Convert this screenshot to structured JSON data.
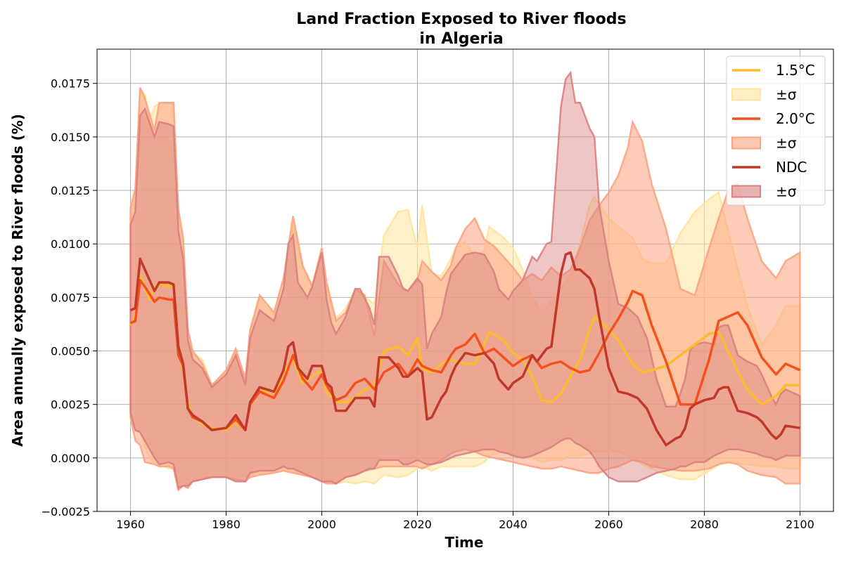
{
  "chart_data": {
    "type": "line",
    "title": "Land Fraction Exposed to River floods",
    "subtitle": "in Algeria",
    "xlabel": "Time",
    "ylabel": "Area annually exposed to River floods (%)",
    "xlim": [
      1953,
      2107
    ],
    "ylim": [
      -0.0025,
      0.0191
    ],
    "xticks": [
      1960,
      1980,
      2000,
      2020,
      2040,
      2060,
      2080,
      2100
    ],
    "yticks": [
      -0.0025,
      0.0,
      0.0025,
      0.005,
      0.0075,
      0.01,
      0.0125,
      0.015,
      0.0175
    ],
    "ytick_labels": [
      "−0.0025",
      "0.0000",
      "0.0025",
      "0.0050",
      "0.0075",
      "0.0100",
      "0.0125",
      "0.0150",
      "0.0175"
    ],
    "grid": true,
    "legend_position": "top-right",
    "colors": {
      "c15": "#FDBB2F",
      "c20": "#F4511E",
      "cndc": "#C0392B",
      "band15": "#FFE49E",
      "band20": "#FCA37F",
      "bandndc": "#D98080",
      "overlap": "#EB9C76"
    },
    "legend": [
      "1.5°C",
      "±σ",
      "2.0°C",
      "±σ",
      "NDC",
      "±σ"
    ],
    "series": [
      {
        "name": "1.5°C",
        "x": [
          1960,
          1961,
          1962,
          1963,
          1964,
          1965,
          1966,
          1968,
          1969,
          1970,
          1971,
          1972,
          1973,
          1975,
          1977,
          1980,
          1982,
          1984,
          1985,
          1987,
          1990,
          1992,
          1994,
          1996,
          1998,
          2000,
          2001,
          2003,
          2005,
          2007,
          2009,
          2011,
          2013,
          2016,
          2018,
          2020,
          2021,
          2023,
          2025,
          2027,
          2028,
          2030,
          2032,
          2034,
          2035,
          2038,
          2040,
          2042,
          2044,
          2046,
          2048,
          2050,
          2052,
          2054,
          2056,
          2057,
          2060,
          2062,
          2065,
          2067,
          2069,
          2072,
          2075,
          2078,
          2081,
          2083,
          2086,
          2089,
          2092,
          2095,
          2097,
          2100
        ],
        "mean": [
          0.0062,
          0.0066,
          0.0085,
          0.008,
          0.0074,
          0.008,
          0.0081,
          0.008,
          0.0081,
          0.0049,
          0.0041,
          0.0025,
          0.0019,
          0.0016,
          0.0014,
          0.0013,
          0.0017,
          0.0013,
          0.0025,
          0.0033,
          0.0028,
          0.004,
          0.0046,
          0.0035,
          0.0038,
          0.0041,
          0.0031,
          0.0026,
          0.0026,
          0.0028,
          0.0032,
          0.0034,
          0.005,
          0.0052,
          0.0048,
          0.0056,
          0.0042,
          0.004,
          0.0044,
          0.0046,
          0.0045,
          0.0044,
          0.0044,
          0.0053,
          0.0059,
          0.0055,
          0.0049,
          0.0046,
          0.0038,
          0.0027,
          0.0026,
          0.003,
          0.0038,
          0.0046,
          0.006,
          0.0066,
          0.006,
          0.0055,
          0.0044,
          0.004,
          0.0041,
          0.0043,
          0.0048,
          0.0053,
          0.0058,
          0.0059,
          0.0045,
          0.0032,
          0.0025,
          0.0029,
          0.0034,
          0.0034
        ],
        "upper": [
          0.0115,
          0.0122,
          0.0172,
          0.017,
          0.0157,
          0.0164,
          0.0166,
          0.0166,
          0.0165,
          0.0116,
          0.0102,
          0.006,
          0.0049,
          0.0046,
          0.0034,
          0.004,
          0.005,
          0.0036,
          0.0058,
          0.0074,
          0.0067,
          0.0079,
          0.0108,
          0.0089,
          0.0081,
          0.0098,
          0.0078,
          0.0065,
          0.007,
          0.0078,
          0.0075,
          0.0072,
          0.0104,
          0.0115,
          0.0116,
          0.0098,
          0.0118,
          0.0086,
          0.0085,
          0.0093,
          0.0098,
          0.0101,
          0.0094,
          0.0097,
          0.0108,
          0.0103,
          0.0098,
          0.0088,
          0.0075,
          0.0068,
          0.0073,
          0.0079,
          0.0085,
          0.01,
          0.0118,
          0.0122,
          0.0112,
          0.0108,
          0.0103,
          0.0093,
          0.0091,
          0.0091,
          0.0105,
          0.0115,
          0.0121,
          0.0124,
          0.0097,
          0.0071,
          0.0053,
          0.0062,
          0.0071,
          0.0071
        ],
        "lower": [
          0.0018,
          0.0013,
          0.0012,
          0.0005,
          0.0,
          -0.0002,
          -0.0003,
          -0.0005,
          -0.0005,
          -0.0014,
          -0.0013,
          -0.0014,
          -0.0011,
          -0.001,
          -0.0009,
          -0.0009,
          -0.001,
          -0.0011,
          -0.0008,
          -0.0007,
          -0.0006,
          -0.0005,
          -0.0006,
          -0.0008,
          -0.0009,
          -0.0011,
          -0.0011,
          -0.0012,
          -0.0011,
          -0.0012,
          -0.0011,
          -0.0012,
          -0.0008,
          -0.0009,
          -0.0008,
          -0.0005,
          -0.0004,
          -0.0006,
          -0.0004,
          -0.0004,
          -0.0004,
          -0.0004,
          -0.0004,
          -0.0002,
          0.0001,
          0.0003,
          0.0002,
          0.0001,
          0.0,
          -0.0002,
          -0.0001,
          -0.0001,
          0.0001,
          0.0001,
          0.0002,
          0.0003,
          0.0003,
          0.0003,
          0.0,
          -0.0003,
          -0.0005,
          -0.0008,
          -0.001,
          -0.001,
          -0.0006,
          -0.0003,
          -0.0002,
          -0.0003,
          -0.0004,
          -0.0004,
          -0.0005,
          -0.0005
        ]
      },
      {
        "name": "2.0°C",
        "x": [
          1960,
          1961,
          1962,
          1963,
          1965,
          1966,
          1968,
          1969,
          1970,
          1971,
          1972,
          1973,
          1975,
          1977,
          1980,
          1982,
          1984,
          1985,
          1987,
          1990,
          1992,
          1994,
          1996,
          1998,
          2000,
          2001,
          2003,
          2005,
          2007,
          2009,
          2011,
          2013,
          2016,
          2018,
          2020,
          2021,
          2023,
          2025,
          2027,
          2028,
          2030,
          2032,
          2034,
          2036,
          2038,
          2040,
          2042,
          2044,
          2046,
          2048,
          2050,
          2052,
          2054,
          2056,
          2058,
          2060,
          2062,
          2064,
          2065,
          2067,
          2069,
          2072,
          2075,
          2078,
          2081,
          2083,
          2085,
          2087,
          2089,
          2092,
          2095,
          2097,
          2100
        ],
        "mean": [
          0.0063,
          0.0064,
          0.0083,
          0.008,
          0.0073,
          0.0075,
          0.0074,
          0.0074,
          0.0048,
          0.0043,
          0.0023,
          0.0019,
          0.0017,
          0.0013,
          0.0014,
          0.0018,
          0.0013,
          0.0025,
          0.0031,
          0.0028,
          0.0036,
          0.0048,
          0.0037,
          0.0032,
          0.0039,
          0.0034,
          0.0027,
          0.0029,
          0.0035,
          0.0037,
          0.0032,
          0.004,
          0.0044,
          0.0038,
          0.0046,
          0.0043,
          0.0041,
          0.004,
          0.0048,
          0.0051,
          0.0053,
          0.0058,
          0.0049,
          0.0051,
          0.0047,
          0.0043,
          0.0046,
          0.0048,
          0.0042,
          0.0044,
          0.0045,
          0.0042,
          0.004,
          0.0041,
          0.0049,
          0.0058,
          0.0065,
          0.0073,
          0.0078,
          0.0076,
          0.0062,
          0.0045,
          0.0025,
          0.0025,
          0.0046,
          0.0064,
          0.0066,
          0.0068,
          0.0062,
          0.0047,
          0.0039,
          0.0044,
          0.0041
        ],
        "upper": [
          0.0117,
          0.0126,
          0.0173,
          0.0168,
          0.0153,
          0.0166,
          0.0166,
          0.0166,
          0.0116,
          0.0103,
          0.006,
          0.005,
          0.0044,
          0.0034,
          0.0041,
          0.0051,
          0.0037,
          0.006,
          0.0076,
          0.0068,
          0.0084,
          0.0113,
          0.009,
          0.008,
          0.0098,
          0.0082,
          0.0064,
          0.0068,
          0.0079,
          0.0076,
          0.0057,
          0.0092,
          0.0081,
          0.0078,
          0.0083,
          0.0092,
          0.0087,
          0.0083,
          0.009,
          0.0098,
          0.0107,
          0.0112,
          0.0102,
          0.0099,
          0.0094,
          0.0089,
          0.0083,
          0.0086,
          0.0083,
          0.0089,
          0.0085,
          0.0088,
          0.0098,
          0.0111,
          0.0118,
          0.0124,
          0.0132,
          0.0145,
          0.0157,
          0.0148,
          0.0128,
          0.0107,
          0.0079,
          0.0076,
          0.0098,
          0.0112,
          0.0125,
          0.0128,
          0.0112,
          0.0092,
          0.0084,
          0.0092,
          0.0096
        ],
        "lower": [
          0.0019,
          0.0008,
          0.0006,
          -0.0002,
          -0.0003,
          -0.0004,
          -0.0004,
          -0.0005,
          -0.0015,
          -0.0013,
          -0.0014,
          -0.0011,
          -0.001,
          -0.0009,
          -0.0009,
          -0.001,
          -0.0011,
          -0.0009,
          -0.0008,
          -0.0007,
          -0.0006,
          -0.0007,
          -0.0008,
          -0.0009,
          -0.0011,
          -0.0012,
          -0.0012,
          -0.0009,
          -0.0008,
          -0.0006,
          -0.0005,
          -0.0004,
          -0.0004,
          -0.0004,
          -0.0004,
          -0.0005,
          -0.0003,
          -0.0001,
          0.0002,
          0.0003,
          0.0004,
          0.0003,
          0.0001,
          0.0,
          -0.0001,
          -0.0002,
          -0.0003,
          -0.0004,
          -0.0005,
          -0.0005,
          -0.0004,
          -0.0005,
          -0.0006,
          -0.0007,
          -0.0007,
          -0.0005,
          -0.0004,
          -0.0002,
          -0.0001,
          -0.0002,
          -0.0004,
          -0.0005,
          -0.0006,
          -0.0006,
          -0.0005,
          -0.0003,
          -0.0002,
          -0.0003,
          -0.0006,
          -0.0008,
          -0.0009,
          -0.0012,
          -0.0012
        ]
      },
      {
        "name": "NDC",
        "x": [
          1960,
          1961,
          1962,
          1963,
          1965,
          1966,
          1968,
          1969,
          1970,
          1971,
          1972,
          1973,
          1975,
          1977,
          1980,
          1982,
          1984,
          1985,
          1987,
          1990,
          1992,
          1993,
          1994,
          1995,
          1997,
          1998,
          2000,
          2001,
          2002,
          2003,
          2005,
          2007,
          2008,
          2010,
          2011,
          2012,
          2014,
          2016,
          2017,
          2018,
          2020,
          2021,
          2022,
          2023,
          2025,
          2026,
          2027,
          2028,
          2030,
          2032,
          2034,
          2036,
          2037,
          2039,
          2040,
          2042,
          2044,
          2045,
          2046,
          2047,
          2048,
          2050,
          2051,
          2052,
          2053,
          2054,
          2056,
          2057,
          2058,
          2060,
          2062,
          2064,
          2066,
          2068,
          2070,
          2072,
          2074,
          2075,
          2076,
          2077,
          2078,
          2080,
          2082,
          2083,
          2084,
          2085,
          2087,
          2089,
          2091,
          2092,
          2094,
          2095,
          2096,
          2097,
          2100
        ],
        "mean": [
          0.0069,
          0.007,
          0.0093,
          0.0088,
          0.0078,
          0.0082,
          0.0082,
          0.0081,
          0.0052,
          0.0044,
          0.0023,
          0.002,
          0.0017,
          0.0013,
          0.0014,
          0.002,
          0.0013,
          0.0026,
          0.0033,
          0.0031,
          0.0041,
          0.0052,
          0.0054,
          0.0042,
          0.0037,
          0.0043,
          0.0043,
          0.0035,
          0.0033,
          0.0022,
          0.0022,
          0.0028,
          0.0028,
          0.0028,
          0.0024,
          0.0047,
          0.0047,
          0.0042,
          0.0038,
          0.0038,
          0.0042,
          0.004,
          0.0018,
          0.0019,
          0.0028,
          0.0031,
          0.0038,
          0.0043,
          0.0049,
          0.0048,
          0.0049,
          0.0044,
          0.0037,
          0.0032,
          0.0035,
          0.0038,
          0.0048,
          0.0045,
          0.0048,
          0.0051,
          0.0052,
          0.0086,
          0.0095,
          0.0096,
          0.0088,
          0.0088,
          0.0084,
          0.0079,
          0.0066,
          0.0042,
          0.0031,
          0.003,
          0.0028,
          0.0023,
          0.0013,
          0.0006,
          0.0009,
          0.001,
          0.0014,
          0.0023,
          0.0025,
          0.0027,
          0.0028,
          0.0032,
          0.0033,
          0.0033,
          0.0022,
          0.0021,
          0.0019,
          0.0017,
          0.0011,
          0.0009,
          0.0011,
          0.0015,
          0.0014
        ],
        "upper": [
          0.0109,
          0.0115,
          0.016,
          0.0163,
          0.015,
          0.0157,
          0.0156,
          0.0155,
          0.0106,
          0.0093,
          0.0055,
          0.0046,
          0.0042,
          0.0033,
          0.0039,
          0.0048,
          0.0034,
          0.0056,
          0.0069,
          0.0064,
          0.0079,
          0.01,
          0.0104,
          0.0082,
          0.0075,
          0.008,
          0.0096,
          0.0074,
          0.0063,
          0.0058,
          0.0066,
          0.0079,
          0.0079,
          0.007,
          0.0062,
          0.0094,
          0.0094,
          0.0085,
          0.0079,
          0.0078,
          0.0084,
          0.0081,
          0.0051,
          0.0058,
          0.0066,
          0.0077,
          0.0086,
          0.0089,
          0.0095,
          0.0096,
          0.0095,
          0.0087,
          0.0079,
          0.0074,
          0.0078,
          0.0083,
          0.0094,
          0.0092,
          0.0096,
          0.01,
          0.0101,
          0.0164,
          0.0177,
          0.018,
          0.0166,
          0.0166,
          0.0154,
          0.015,
          0.0118,
          0.0092,
          0.0072,
          0.007,
          0.0066,
          0.0056,
          0.0037,
          0.0024,
          0.0024,
          0.003,
          0.0037,
          0.005,
          0.0053,
          0.0054,
          0.0053,
          0.0061,
          0.0062,
          0.0062,
          0.0048,
          0.0045,
          0.0043,
          0.0039,
          0.0029,
          0.0025,
          0.003,
          0.0032,
          0.0029
        ],
        "lower": [
          0.0021,
          0.0013,
          0.0012,
          0.0008,
          0.0,
          -0.0003,
          -0.0002,
          -0.0003,
          -0.0014,
          -0.0013,
          -0.0013,
          -0.0011,
          -0.001,
          -0.0009,
          -0.0009,
          -0.0011,
          -0.0011,
          -0.0007,
          -0.0006,
          -0.0006,
          -0.0004,
          -0.0005,
          -0.0005,
          -0.0006,
          -0.0008,
          -0.0009,
          -0.0011,
          -0.0011,
          -0.0011,
          -0.0012,
          -0.0009,
          -0.0008,
          -0.0007,
          -0.0005,
          -0.0005,
          -0.0001,
          -0.0001,
          -0.0001,
          -0.0003,
          -0.0003,
          -0.0001,
          -0.0002,
          -0.0003,
          -0.0003,
          -0.0002,
          -0.0001,
          0.0,
          0.0001,
          0.0002,
          0.0003,
          0.0004,
          0.0004,
          0.0003,
          0.0002,
          0.0001,
          0.0,
          0.0001,
          0.0002,
          0.0003,
          0.0004,
          0.0005,
          0.0008,
          0.0009,
          0.0009,
          0.0007,
          0.0006,
          0.0003,
          0.0,
          -0.0004,
          -0.0009,
          -0.0011,
          -0.0011,
          -0.0011,
          -0.0009,
          -0.0007,
          -0.0006,
          -0.0005,
          -0.0004,
          -0.0004,
          -0.0003,
          -0.0002,
          -0.0002,
          0.0001,
          0.0002,
          0.0003,
          0.0004,
          0.0004,
          0.0003,
          0.0002,
          0.0001,
          0.0,
          -0.0001,
          0.0,
          0.0001,
          0.0001
        ]
      }
    ]
  }
}
